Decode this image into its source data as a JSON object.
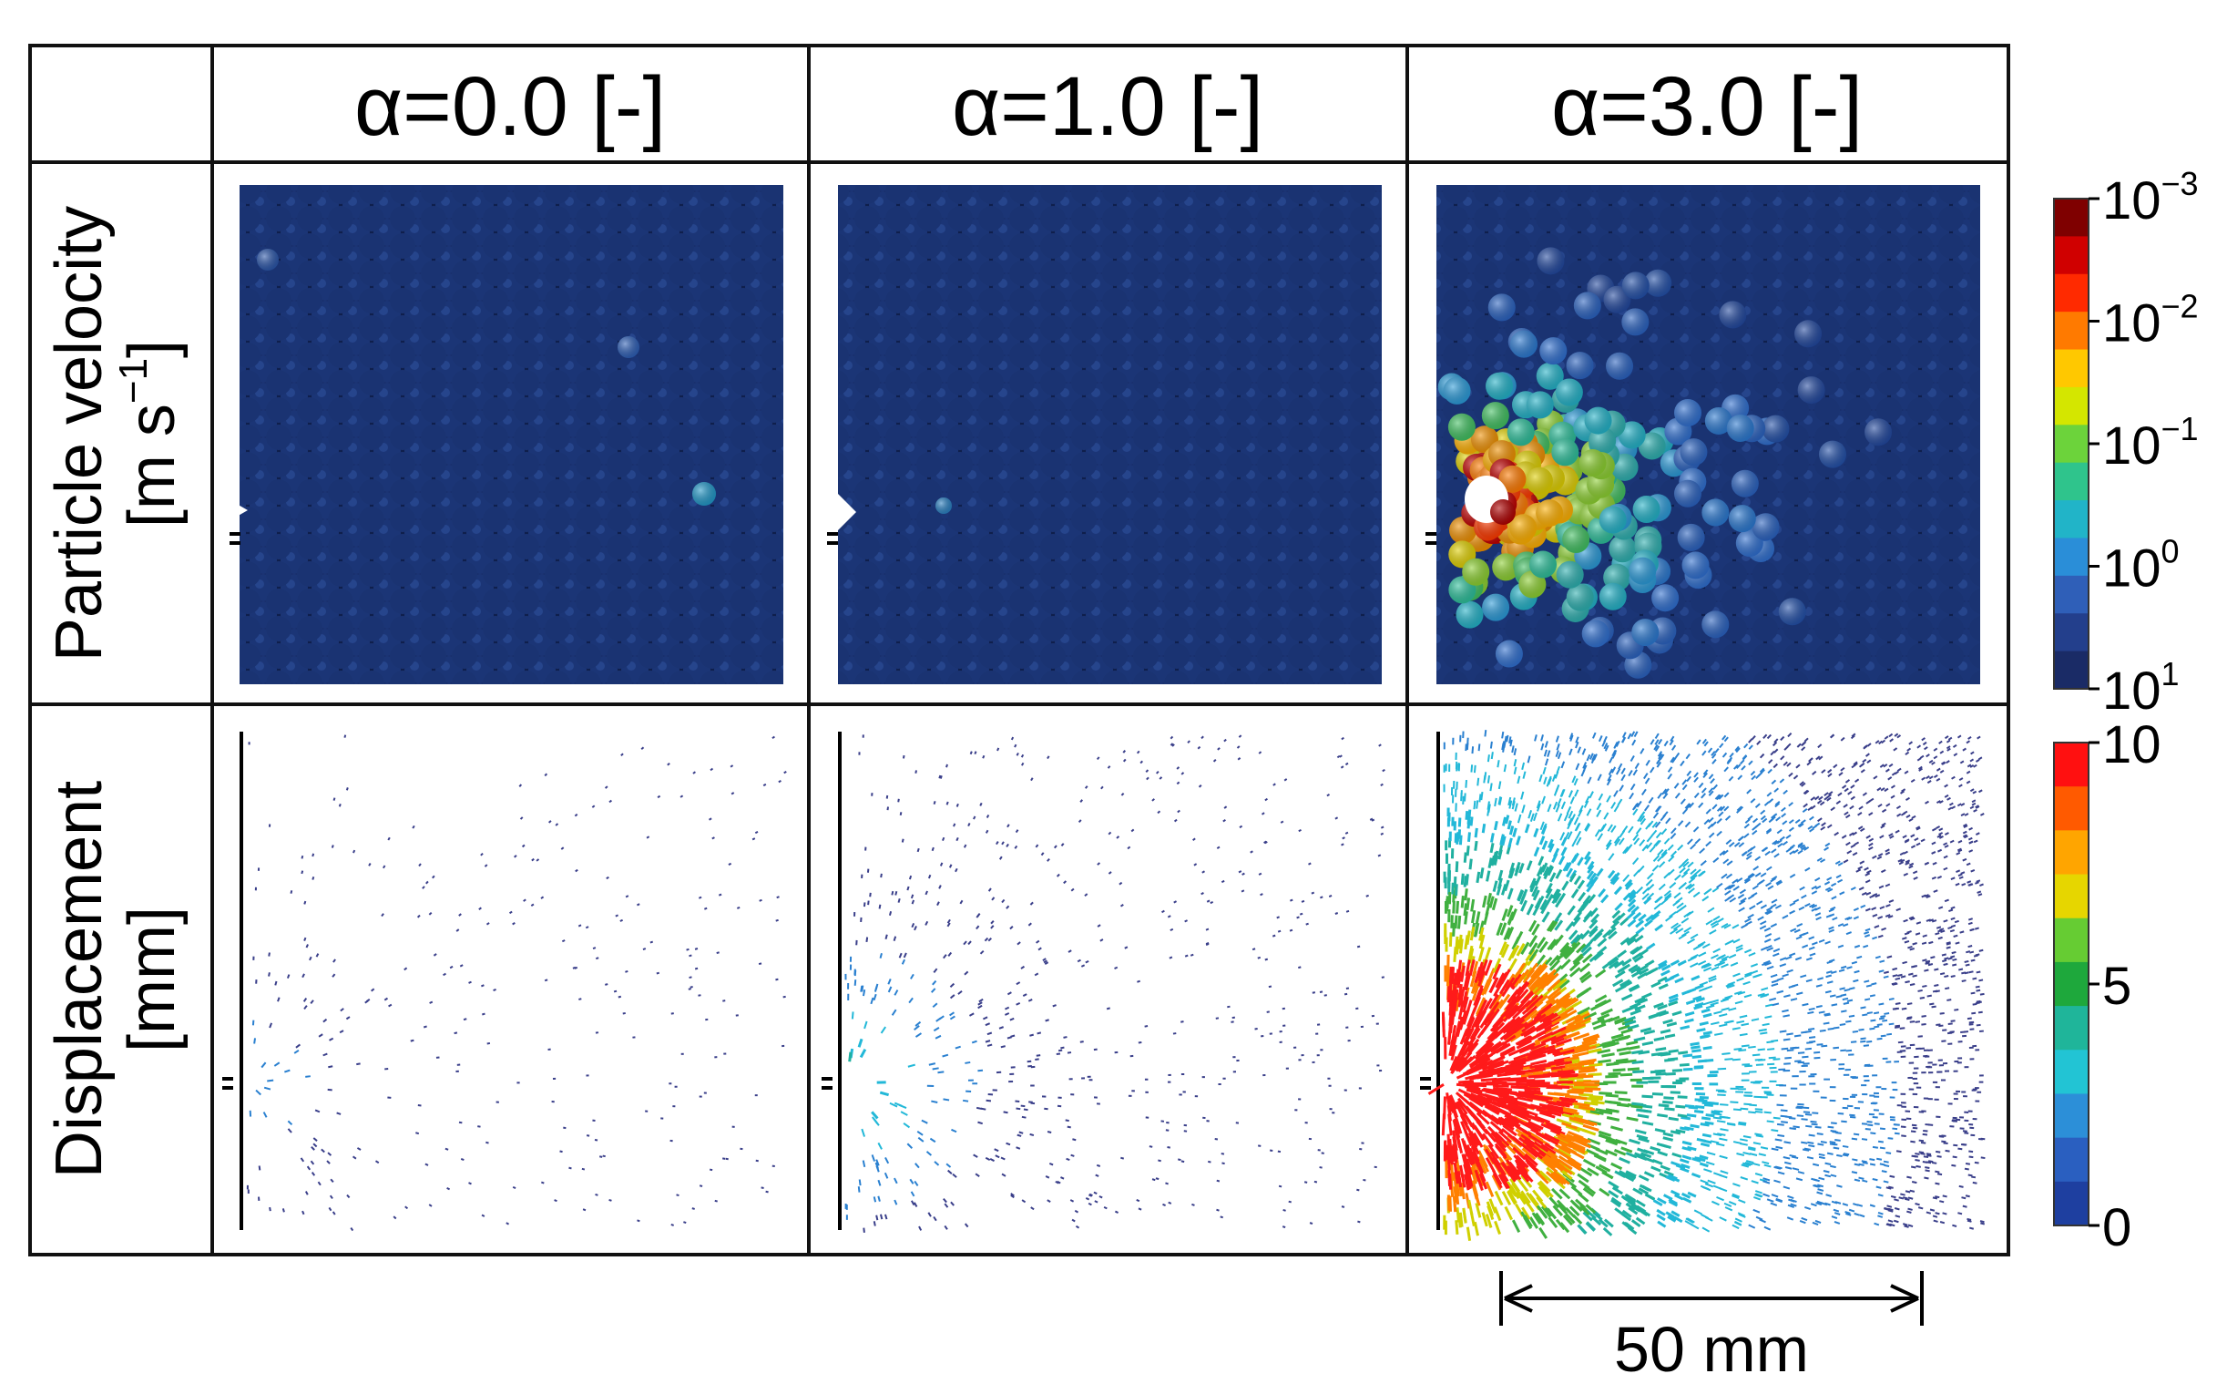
{
  "figure": {
    "columns": [
      {
        "label": "α=0.0 [-]",
        "alpha": 0.0
      },
      {
        "label": "α=1.0 [-]",
        "alpha": 1.0
      },
      {
        "label": "α=3.0 [-]",
        "alpha": 3.0
      }
    ],
    "rows": [
      {
        "line1": "Particle velocity",
        "line2": "[m s",
        "line2_sup": "−1",
        "line2_end": "]"
      },
      {
        "line1": "Displacement",
        "line2": "[mm]"
      }
    ],
    "colorbar_velocity": {
      "ticks": [
        {
          "base": "10",
          "exp": "−3"
        },
        {
          "base": "10",
          "exp": "−2"
        },
        {
          "base": "10",
          "exp": "−1"
        },
        {
          "base": "10",
          "exp": "0"
        },
        {
          "base": "10",
          "exp": "1"
        }
      ],
      "colors": [
        "#7f0000",
        "#d00000",
        "#ff2a00",
        "#ff7a00",
        "#ffc800",
        "#d4e600",
        "#6cd33b",
        "#2fc48c",
        "#21b4c8",
        "#2a8ed8",
        "#2f5fb8",
        "#233f8c",
        "#1a2b66"
      ]
    },
    "colorbar_displacement": {
      "ticks": [
        "10",
        "5",
        "0"
      ],
      "colors": [
        "#ff1010",
        "#ff5a00",
        "#ffa500",
        "#e6d600",
        "#66cc33",
        "#1ea83c",
        "#1fb59a",
        "#22c4d4",
        "#2c8fd8",
        "#2a5fc0",
        "#1e3fa0"
      ]
    },
    "scale_bar": {
      "label": "50 mm"
    }
  }
}
